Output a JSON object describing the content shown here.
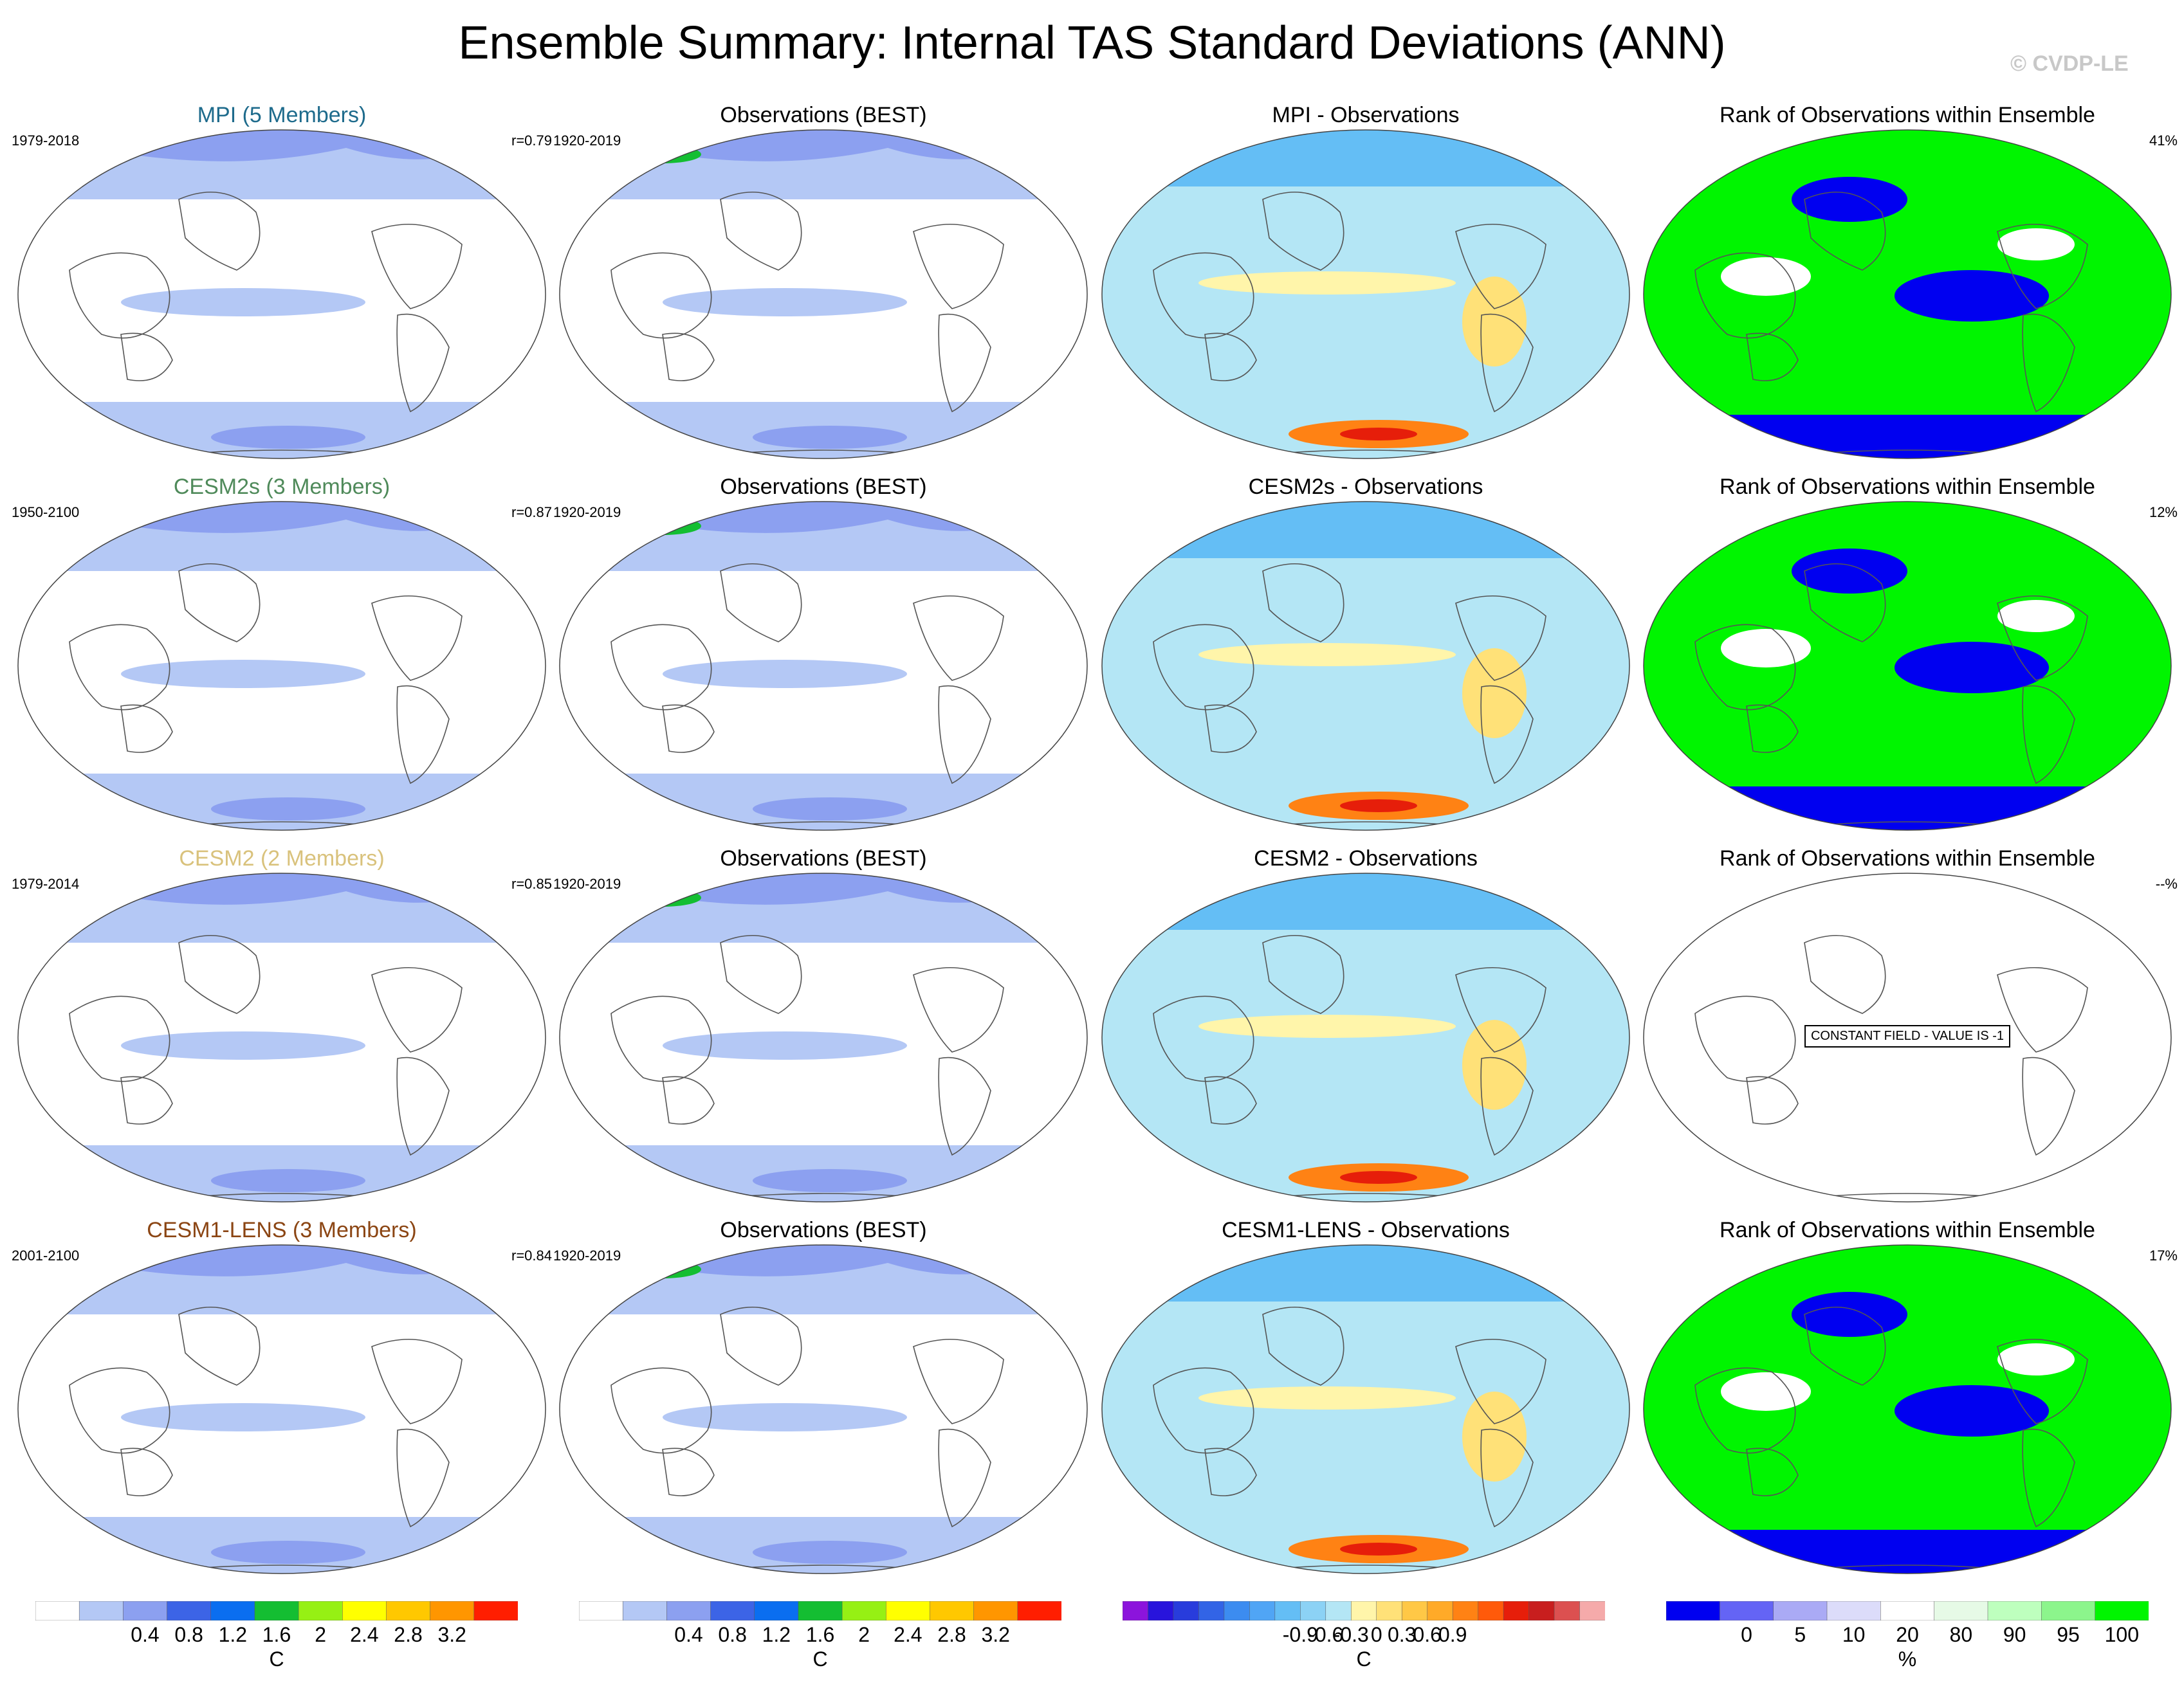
{
  "title": "Ensemble Summary: Internal TAS Standard Deviations (ANN)",
  "watermark": "© CVDP-LE",
  "rows": [
    {
      "model": {
        "title": "MPI (5 Members)",
        "color": "#1e6b8c",
        "period": "1979-2018",
        "corr": "r=0.79"
      },
      "obs": {
        "title": "Observations (BEST)",
        "period": "1920-2019"
      },
      "diff": {
        "title": "MPI - Observations"
      },
      "rank": {
        "title": "Rank of Observations within Ensemble",
        "pct": "41%",
        "constant": ""
      }
    },
    {
      "model": {
        "title": "CESM2s (3 Members)",
        "color": "#4f8a5a",
        "period": "1950-2100",
        "corr": "r=0.87"
      },
      "obs": {
        "title": "Observations (BEST)",
        "period": "1920-2019"
      },
      "diff": {
        "title": "CESM2s - Observations"
      },
      "rank": {
        "title": "Rank of Observations within Ensemble",
        "pct": "12%",
        "constant": ""
      }
    },
    {
      "model": {
        "title": "CESM2 (2 Members)",
        "color": "#d9c27c",
        "period": "1979-2014",
        "corr": "r=0.85"
      },
      "obs": {
        "title": "Observations (BEST)",
        "period": "1920-2019"
      },
      "diff": {
        "title": "CESM2 - Observations"
      },
      "rank": {
        "title": "Rank of Observations within Ensemble",
        "pct": "--%",
        "constant": "CONSTANT FIELD - VALUE IS -1"
      }
    },
    {
      "model": {
        "title": "CESM1-LENS (3 Members)",
        "color": "#8b4513",
        "period": "2001-2100",
        "corr": "r=0.84"
      },
      "obs": {
        "title": "Observations (BEST)",
        "period": "1920-2019"
      },
      "diff": {
        "title": "CESM1-LENS - Observations"
      },
      "rank": {
        "title": "Rank of Observations within Ensemble",
        "pct": "17%",
        "constant": ""
      }
    }
  ],
  "colorbars": [
    {
      "colors": [
        "#ffffff",
        "#b4c8f5",
        "#8ca0f0",
        "#3c64e6",
        "#0a6ef0",
        "#14be32",
        "#96f014",
        "#ffff00",
        "#ffc800",
        "#ff9600",
        "#ff1e00"
      ],
      "ticks": [
        "0.4",
        "0.8",
        "1.2",
        "1.6",
        "2",
        "2.4",
        "2.8",
        "3.2"
      ],
      "unit": "C"
    },
    {
      "colors": [
        "#ffffff",
        "#b4c8f5",
        "#8ca0f0",
        "#3c64e6",
        "#0a6ef0",
        "#14be32",
        "#96f014",
        "#ffff00",
        "#ffc800",
        "#ff9600",
        "#ff1e00"
      ],
      "ticks": [
        "0.4",
        "0.8",
        "1.2",
        "1.6",
        "2",
        "2.4",
        "2.8",
        "3.2"
      ],
      "unit": "C"
    },
    {
      "colors": [
        "#8c14dc",
        "#2814dc",
        "#283cdc",
        "#3264e6",
        "#3c8cf0",
        "#50a5f5",
        "#64bef5",
        "#8cd2f5",
        "#b4e6f5",
        "#fff5aa",
        "#ffe178",
        "#ffc846",
        "#ffaa28",
        "#ff8214",
        "#ff5a0a",
        "#e61e0a",
        "#c81e1e",
        "#dc5050",
        "#f5aaaa"
      ],
      "ticks": [
        "-0.9",
        "-0.6",
        "-0.3",
        "0",
        "0.3",
        "0.6",
        "0.9"
      ],
      "unit": "C"
    },
    {
      "colors": [
        "#0000f0",
        "#6464f5",
        "#aaaaf5",
        "#dcdcfa",
        "#ffffff",
        "#e6fae6",
        "#beffbe",
        "#8cf58c",
        "#00f500"
      ],
      "ticks": [
        "0",
        "5",
        "10",
        "20",
        "80",
        "90",
        "95",
        "100"
      ],
      "unit": "%"
    }
  ]
}
